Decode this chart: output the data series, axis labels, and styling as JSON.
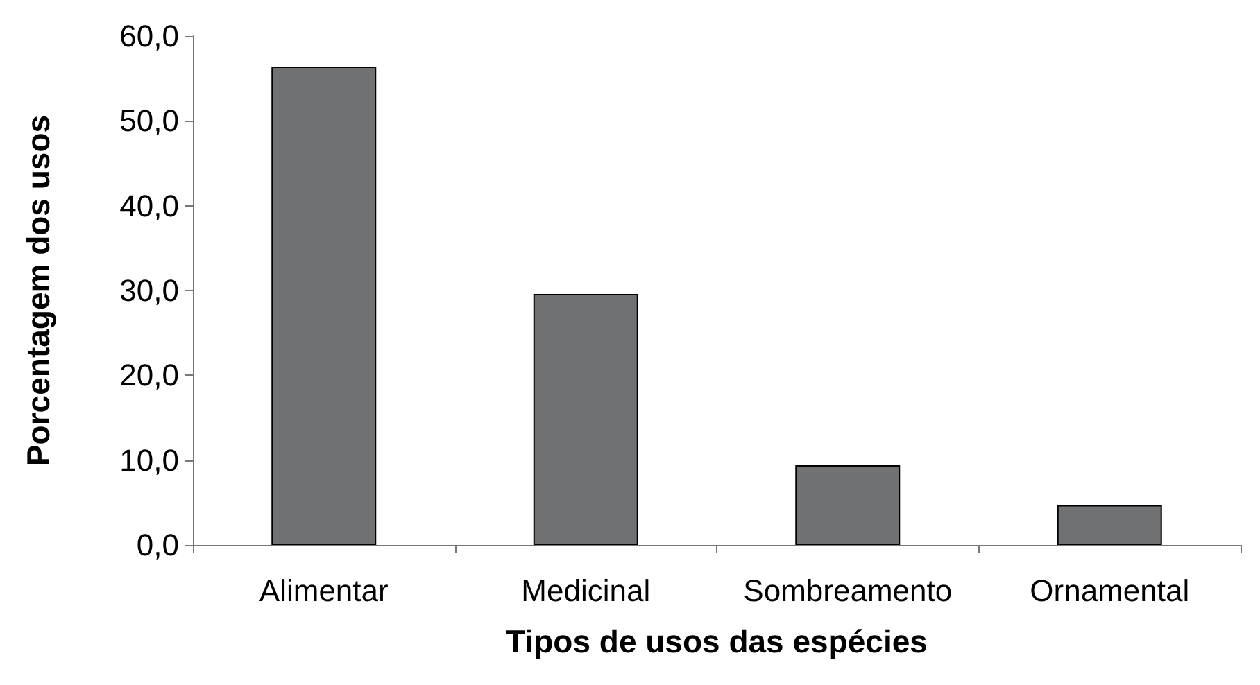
{
  "chart_data": {
    "type": "bar",
    "xlabel": "Tipos de usos das espécies",
    "ylabel": "Porcentagem dos usos",
    "categories": [
      "Alimentar",
      "Medicinal",
      "Sombreamento",
      "Ornamental"
    ],
    "values": [
      56.4,
      29.6,
      9.4,
      4.7
    ],
    "color": "#6f7173",
    "ylim": [
      0,
      60
    ],
    "yticks": [
      {
        "value": 0,
        "label": "0,0"
      },
      {
        "value": 10,
        "label": "10,0"
      },
      {
        "value": 20,
        "label": "20,0"
      },
      {
        "value": 30,
        "label": "30,0"
      },
      {
        "value": 40,
        "label": "40,0"
      },
      {
        "value": 50,
        "label": "50,0"
      },
      {
        "value": 60,
        "label": "60,0"
      }
    ],
    "grid": false
  }
}
